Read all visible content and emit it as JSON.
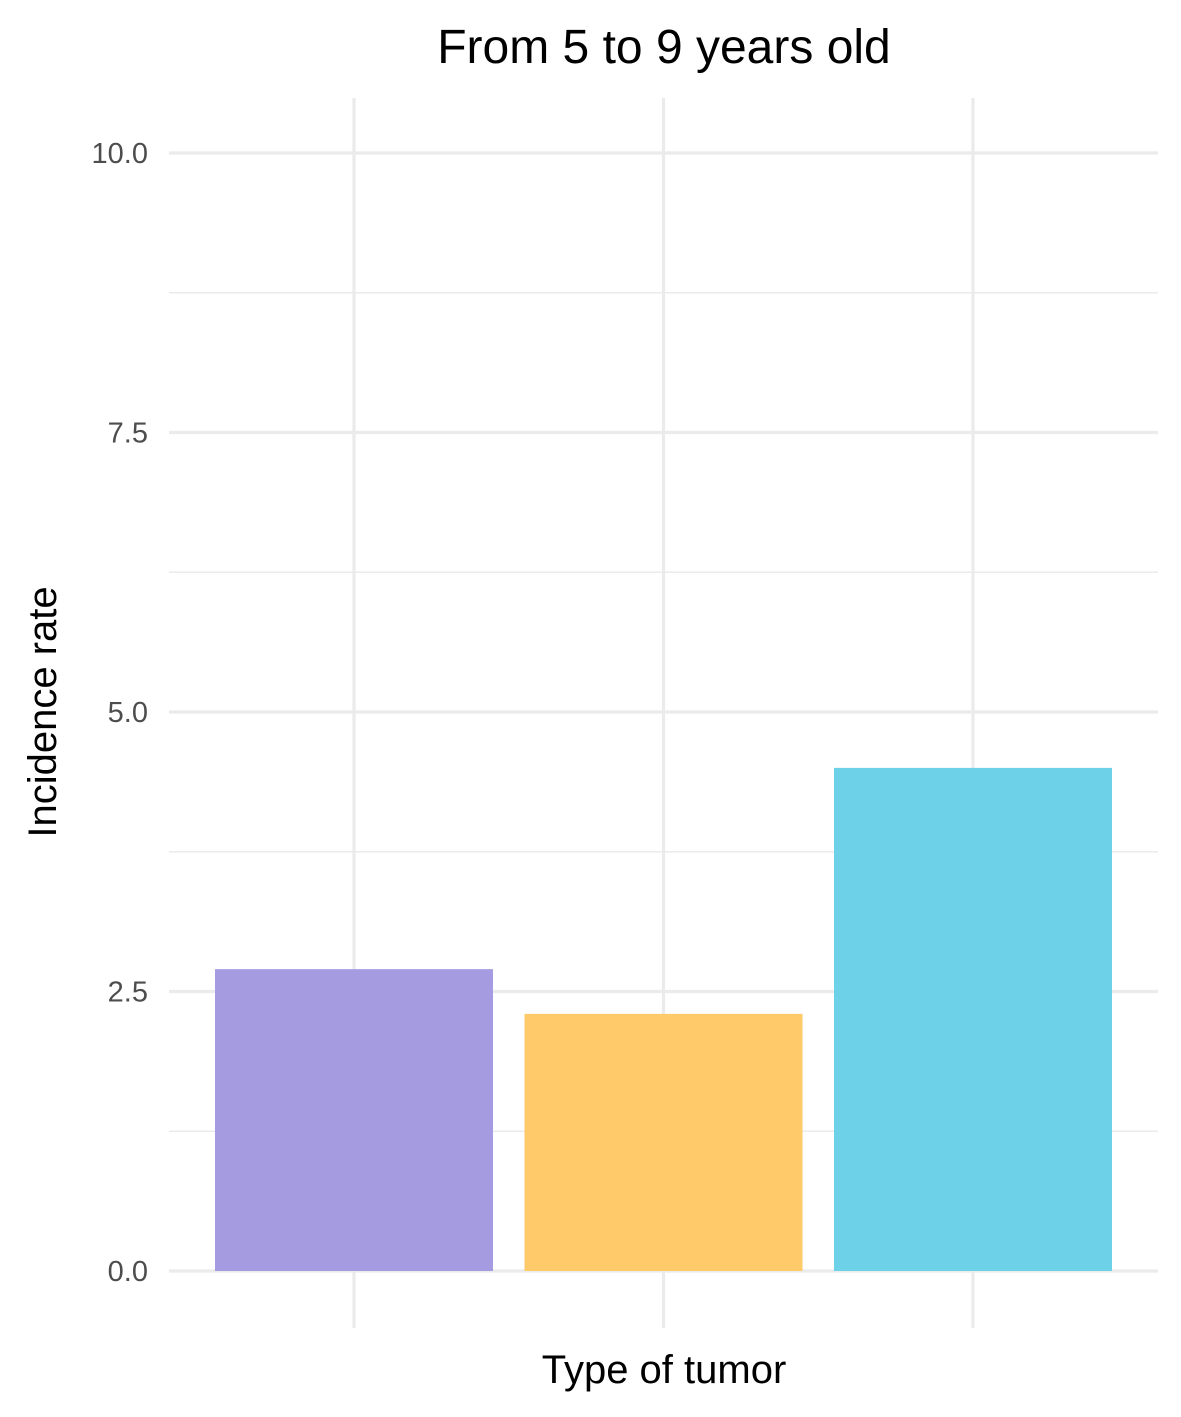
{
  "chart_data": {
    "type": "bar",
    "title": "From 5 to 9 years old",
    "xlabel": "Type of tumor",
    "ylabel": "Incidence rate",
    "categories": [
      "",
      "",
      ""
    ],
    "values": [
      2.7,
      2.3,
      4.5
    ],
    "colors": [
      "#a59be0",
      "#feca6a",
      "#6dd2e8"
    ],
    "ylim": [
      0,
      10
    ],
    "yticks": [
      0,
      2.5,
      5,
      7.5,
      10
    ],
    "ytick_labels": [
      "0.0",
      "2.5",
      "5.0",
      "7.5",
      "10.0"
    ],
    "grid": true,
    "grid_color": "#ebebeb",
    "legend": "none"
  }
}
